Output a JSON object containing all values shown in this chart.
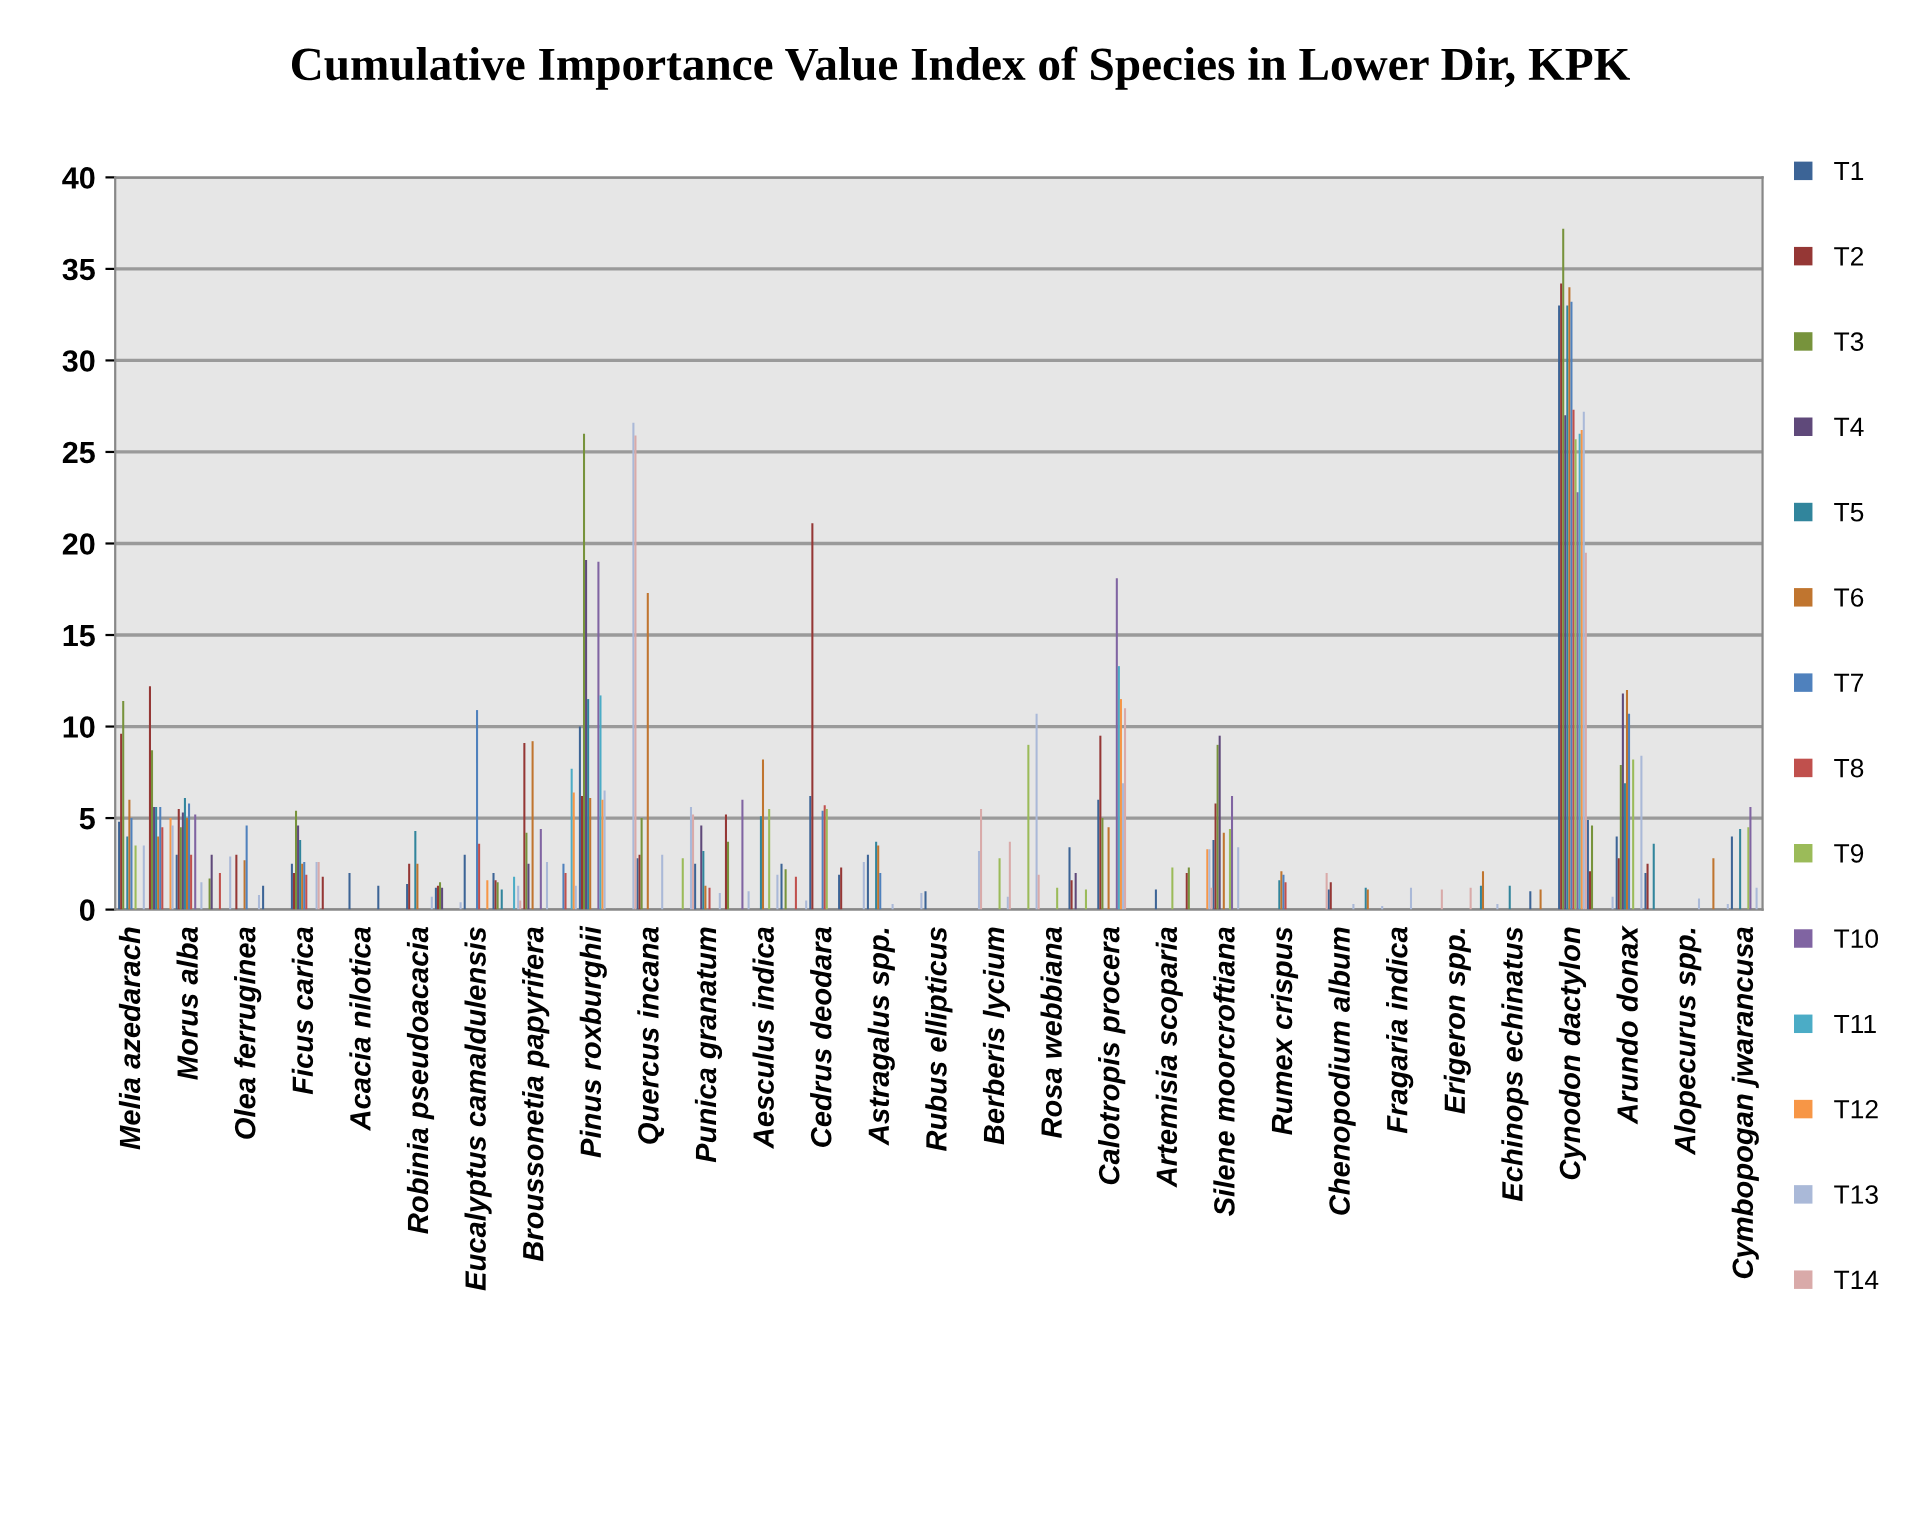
{
  "chart_data": {
    "type": "bar",
    "title": "Cumulative Importance Value Index of Species in Lower Dir, KPK",
    "categories": [
      "Melia azedarach",
      null,
      "Morus alba",
      null,
      "Olea ferruginea",
      null,
      "Ficus carica",
      null,
      "Acacia nilotica",
      null,
      "Robinia pseudoacacia",
      null,
      "Eucalyptus camaldulensis",
      null,
      "Broussonetia papyrifera",
      null,
      "Pinus roxburghii",
      null,
      "Quercus incana",
      null,
      "Punica granatum",
      null,
      "Aesculus indica",
      null,
      "Cedrus deodara",
      null,
      "Astragalus spp.",
      null,
      "Rubus ellipticus",
      null,
      "Berberis lycium",
      null,
      "Rosa webbiana",
      null,
      "Calotropis procera",
      null,
      "Artemisia scoparia",
      null,
      "Silene moorcroftiana",
      null,
      "Rumex crispus",
      null,
      "Chenopodium album",
      null,
      "Fragaria indica",
      null,
      "Erigeron spp.",
      null,
      "Echinops echinatus",
      null,
      "Cynodon dactylon",
      null,
      "Arundo donax",
      null,
      "Alopecurus spp.",
      null,
      "Cymbopogan jwarancusa"
    ],
    "series": [
      {
        "name": "T1",
        "color": "#3c6496",
        "values": [
          4.8,
          null,
          3.0,
          null,
          null,
          1.3,
          2.5,
          null,
          2.0,
          1.3,
          1.4,
          1.2,
          3.0,
          2.0,
          null,
          null,
          10.0,
          null,
          2.8,
          null,
          2.5,
          null,
          null,
          2.5,
          6.2,
          1.9,
          3.0,
          null,
          1.0,
          null,
          null,
          null,
          null,
          3.4,
          6.0,
          null,
          1.1,
          null,
          3.8,
          null,
          null,
          null,
          1.1,
          null,
          null,
          null,
          null,
          null,
          null,
          1.0,
          33.0,
          4.9,
          4.0,
          2.0,
          null,
          null,
          4.0
        ]
      },
      {
        "name": "T2",
        "color": "#953735",
        "values": [
          9.6,
          12.2,
          5.5,
          null,
          3.0,
          null,
          2.0,
          1.8,
          null,
          null,
          2.5,
          1.3,
          null,
          1.6,
          9.1,
          null,
          6.2,
          null,
          3.0,
          null,
          null,
          5.2,
          null,
          null,
          21.1,
          2.3,
          null,
          null,
          null,
          null,
          null,
          null,
          null,
          1.6,
          9.5,
          null,
          null,
          2.0,
          5.8,
          null,
          null,
          null,
          1.5,
          null,
          null,
          null,
          null,
          null,
          null,
          null,
          34.2,
          2.1,
          2.8,
          2.5,
          null,
          null,
          null
        ]
      },
      {
        "name": "T3",
        "color": "#77933c",
        "values": [
          11.4,
          8.7,
          4.5,
          1.7,
          null,
          null,
          5.4,
          null,
          null,
          null,
          null,
          1.5,
          null,
          1.5,
          4.2,
          null,
          26.0,
          null,
          5.0,
          null,
          null,
          3.7,
          null,
          2.2,
          null,
          null,
          null,
          null,
          null,
          null,
          null,
          null,
          null,
          null,
          5.0,
          null,
          null,
          2.3,
          9.0,
          null,
          null,
          null,
          null,
          null,
          null,
          null,
          null,
          null,
          null,
          null,
          37.2,
          4.6,
          7.9,
          null,
          null,
          null,
          null
        ]
      },
      {
        "name": "T4",
        "color": "#5f497a",
        "values": [
          null,
          5.6,
          5.3,
          3.0,
          null,
          null,
          4.6,
          null,
          null,
          null,
          null,
          1.2,
          null,
          null,
          2.5,
          null,
          19.1,
          null,
          null,
          null,
          4.6,
          null,
          null,
          null,
          null,
          null,
          null,
          null,
          null,
          null,
          null,
          null,
          null,
          2.0,
          null,
          null,
          null,
          null,
          9.5,
          null,
          null,
          null,
          null,
          null,
          null,
          null,
          null,
          null,
          null,
          null,
          27.0,
          null,
          11.8,
          null,
          null,
          null,
          null
        ]
      },
      {
        "name": "T5",
        "color": "#31859c",
        "values": [
          4.0,
          5.6,
          6.1,
          null,
          null,
          null,
          3.8,
          null,
          null,
          null,
          4.3,
          null,
          null,
          1.1,
          null,
          null,
          11.5,
          null,
          null,
          null,
          3.2,
          null,
          5.1,
          null,
          null,
          null,
          3.7,
          null,
          null,
          null,
          null,
          null,
          null,
          null,
          null,
          null,
          null,
          null,
          null,
          null,
          1.6,
          null,
          null,
          1.2,
          null,
          null,
          null,
          1.3,
          1.3,
          null,
          33.0,
          null,
          6.9,
          3.6,
          null,
          null,
          4.4
        ]
      },
      {
        "name": "T6",
        "color": "#c0752f",
        "values": [
          6.0,
          4.0,
          5.0,
          null,
          2.7,
          null,
          2.5,
          null,
          null,
          null,
          2.5,
          null,
          null,
          null,
          9.2,
          null,
          6.1,
          null,
          17.3,
          null,
          1.3,
          null,
          8.2,
          null,
          null,
          null,
          3.5,
          null,
          null,
          null,
          null,
          null,
          null,
          null,
          4.5,
          null,
          null,
          null,
          4.2,
          null,
          2.1,
          null,
          null,
          1.1,
          null,
          null,
          null,
          2.1,
          null,
          1.1,
          34.0,
          null,
          12.0,
          null,
          null,
          2.8,
          null
        ]
      },
      {
        "name": "T7",
        "color": "#4f81bd",
        "values": [
          5.0,
          5.6,
          5.8,
          null,
          4.6,
          null,
          2.6,
          null,
          null,
          null,
          null,
          null,
          10.9,
          null,
          null,
          2.5,
          null,
          null,
          null,
          null,
          null,
          null,
          null,
          null,
          5.4,
          null,
          2.0,
          null,
          null,
          null,
          null,
          null,
          null,
          null,
          null,
          null,
          null,
          null,
          null,
          null,
          1.9,
          null,
          null,
          null,
          null,
          null,
          null,
          null,
          null,
          null,
          33.2,
          null,
          10.7,
          null,
          null,
          null,
          null
        ]
      },
      {
        "name": "T8",
        "color": "#c0504d",
        "values": [
          null,
          4.5,
          3.0,
          2.0,
          null,
          null,
          1.9,
          null,
          null,
          null,
          null,
          null,
          3.6,
          null,
          null,
          2.0,
          null,
          null,
          null,
          null,
          1.2,
          null,
          null,
          1.8,
          5.7,
          null,
          null,
          null,
          null,
          null,
          null,
          null,
          null,
          null,
          null,
          null,
          null,
          null,
          null,
          null,
          1.5,
          null,
          null,
          null,
          null,
          null,
          null,
          null,
          null,
          null,
          27.3,
          null,
          null,
          null,
          null,
          null,
          null
        ]
      },
      {
        "name": "T9",
        "color": "#9bbb59",
        "values": [
          3.5,
          null,
          null,
          null,
          null,
          null,
          null,
          null,
          null,
          null,
          null,
          null,
          null,
          null,
          null,
          null,
          null,
          null,
          null,
          2.8,
          null,
          null,
          5.5,
          null,
          5.5,
          null,
          null,
          null,
          null,
          null,
          2.8,
          9.0,
          1.2,
          1.1,
          null,
          null,
          2.3,
          null,
          4.4,
          null,
          null,
          null,
          null,
          null,
          null,
          null,
          null,
          null,
          null,
          null,
          25.7,
          null,
          8.2,
          null,
          null,
          null,
          4.5
        ]
      },
      {
        "name": "T10",
        "color": "#8064a2",
        "values": [
          null,
          null,
          5.2,
          null,
          null,
          null,
          null,
          null,
          null,
          null,
          null,
          null,
          null,
          null,
          4.4,
          null,
          19.0,
          null,
          null,
          null,
          null,
          6.0,
          null,
          null,
          null,
          null,
          null,
          null,
          null,
          null,
          null,
          null,
          null,
          null,
          18.1,
          null,
          null,
          null,
          6.2,
          null,
          null,
          null,
          null,
          null,
          null,
          null,
          null,
          null,
          null,
          null,
          22.8,
          null,
          null,
          null,
          null,
          null,
          5.6
        ]
      },
      {
        "name": "T11",
        "color": "#4bacc6",
        "values": [
          null,
          null,
          null,
          null,
          null,
          null,
          null,
          null,
          null,
          null,
          null,
          null,
          null,
          1.8,
          null,
          7.7,
          11.7,
          null,
          null,
          null,
          null,
          null,
          null,
          null,
          null,
          null,
          null,
          null,
          null,
          null,
          null,
          null,
          null,
          null,
          13.3,
          null,
          null,
          null,
          null,
          null,
          null,
          null,
          null,
          null,
          null,
          null,
          null,
          null,
          null,
          null,
          26.0,
          null,
          null,
          null,
          null,
          null,
          null
        ]
      },
      {
        "name": "T12",
        "color": "#f79646",
        "values": [
          null,
          5.0,
          null,
          null,
          null,
          null,
          null,
          null,
          null,
          null,
          null,
          null,
          1.6,
          null,
          null,
          6.4,
          6.0,
          null,
          null,
          null,
          null,
          null,
          null,
          null,
          null,
          null,
          null,
          null,
          null,
          null,
          null,
          null,
          null,
          null,
          11.5,
          null,
          null,
          3.3,
          null,
          null,
          null,
          null,
          null,
          null,
          null,
          null,
          null,
          null,
          null,
          null,
          26.2,
          null,
          null,
          null,
          null,
          null,
          null
        ]
      },
      {
        "name": "T13",
        "color": "#aab9d8",
        "values": [
          3.5,
          4.6,
          1.5,
          2.9,
          0.8,
          null,
          2.6,
          null,
          null,
          null,
          0.7,
          0.4,
          null,
          1.3,
          2.6,
          1.3,
          6.5,
          26.6,
          3.0,
          5.6,
          0.9,
          1.0,
          1.9,
          0.5,
          null,
          2.6,
          0.3,
          0.9,
          null,
          3.2,
          0.7,
          10.7,
          null,
          null,
          6.9,
          null,
          null,
          3.3,
          3.4,
          null,
          null,
          null,
          0.3,
          0.2,
          1.2,
          null,
          null,
          0.3,
          null,
          null,
          27.2,
          0.7,
          8.4,
          null,
          0.6,
          0.3,
          1.2
        ]
      },
      {
        "name": "T14",
        "color": "#d9aaa9",
        "values": [
          null,
          null,
          null,
          null,
          null,
          null,
          2.6,
          null,
          null,
          null,
          null,
          null,
          null,
          0.5,
          null,
          null,
          null,
          25.9,
          null,
          5.2,
          null,
          null,
          null,
          null,
          null,
          null,
          null,
          null,
          null,
          5.5,
          3.7,
          1.9,
          null,
          null,
          11.0,
          null,
          null,
          1.2,
          null,
          null,
          null,
          2.0,
          null,
          null,
          null,
          1.1,
          1.2,
          null,
          null,
          null,
          19.5,
          null,
          null,
          null,
          null,
          null,
          null
        ]
      }
    ],
    "ylim": [
      0,
      40
    ],
    "yticks": [
      0,
      5,
      10,
      15,
      20,
      25,
      30,
      35,
      40
    ],
    "grid": "y",
    "legend": "right"
  }
}
